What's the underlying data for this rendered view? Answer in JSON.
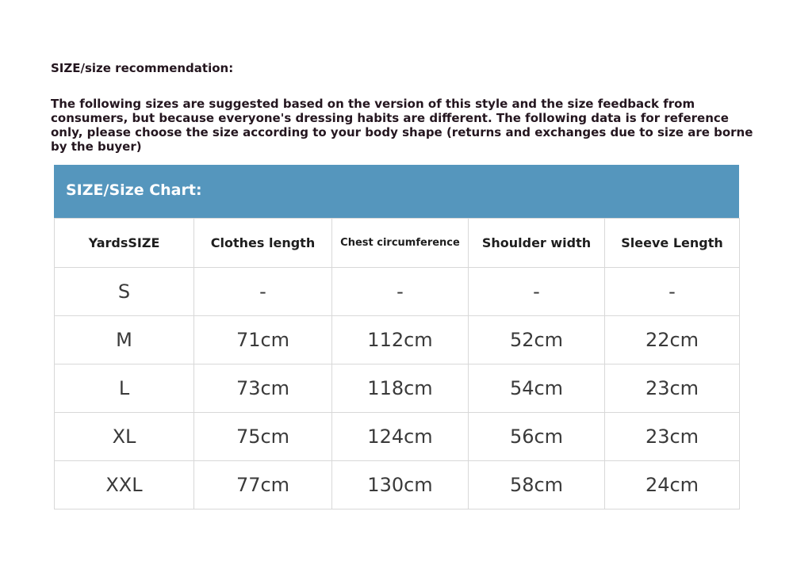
{
  "title": "SIZE/size recommendation:",
  "note": "The following sizes are suggested based on the version of this style and the size feedback from consumers, but because everyone's dressing habits are different. The following data is for reference only, please choose the size according to your body shape (returns and exchanges due to size are borne by the buyer)",
  "chart": {
    "header": "SIZE/Size Chart:",
    "columns": [
      "YardsSIZE",
      "Clothes length",
      "Chest circumference",
      "Shoulder width",
      "Sleeve Length"
    ],
    "rows": [
      [
        "S",
        "-",
        "-",
        "-",
        "-"
      ],
      [
        "M",
        "71cm",
        "112cm",
        "52cm",
        "22cm"
      ],
      [
        "L",
        "73cm",
        "118cm",
        "54cm",
        "23cm"
      ],
      [
        "XL",
        "75cm",
        "124cm",
        "56cm",
        "23cm"
      ],
      [
        "XXL",
        "77cm",
        "130cm",
        "58cm",
        "24cm"
      ]
    ]
  },
  "colors": {
    "header_bg": "#5596bd"
  }
}
